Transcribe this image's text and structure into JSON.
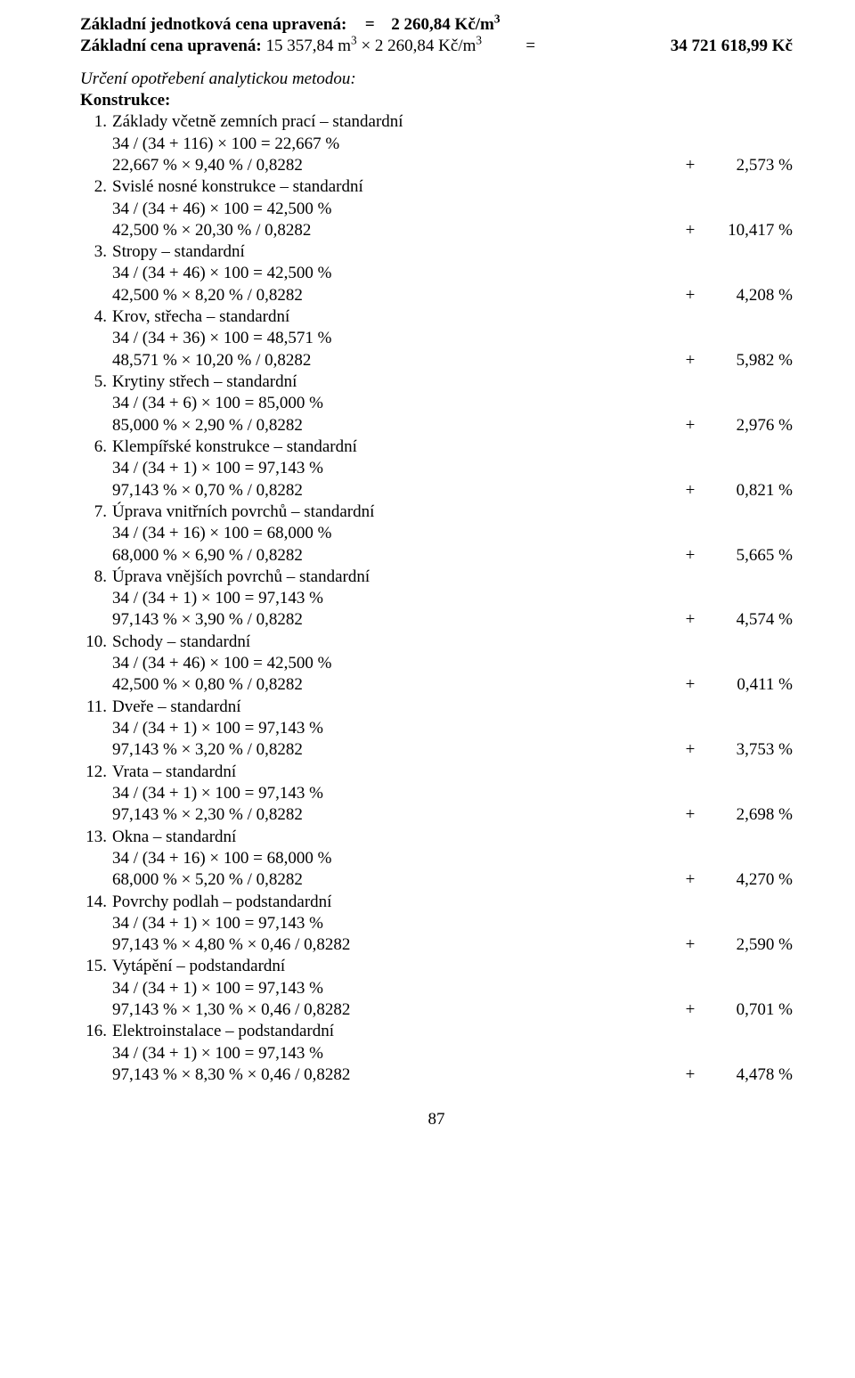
{
  "header": {
    "unit_price_label": "Základní jednotková cena upravená:",
    "unit_price_eq": "=",
    "unit_price_value": "2 260,84 Kč/m",
    "unit_price_exp": "3",
    "base_price_label_a": "Základní cena upravená: ",
    "base_price_label_b": "15 357,84 m",
    "base_price_exp1": "3",
    "base_price_label_c": " × 2 260,84 Kč/m",
    "base_price_exp2": "3",
    "base_price_eq": "=",
    "base_price_total": "34 721 618,99 Kč"
  },
  "section": {
    "method_title": "Určení opotřebení analytickou metodou:",
    "konstrukce_title": "Konstrukce:"
  },
  "items": [
    {
      "n": "1.",
      "title": "Základy včetně zemních prací – standardní",
      "calc": "34 / (34 + 116) × 100 = 22,667 %",
      "result_lhs": "22,667 % × 9,40 % / 0,8282",
      "plus": "+",
      "value": "2,573 %"
    },
    {
      "n": "2.",
      "title": "Svislé nosné konstrukce – standardní",
      "calc": "34 / (34 + 46) × 100 = 42,500 %",
      "result_lhs": "42,500 % × 20,30 % / 0,8282",
      "plus": "+",
      "value": "10,417 %"
    },
    {
      "n": "3.",
      "title": "Stropy – standardní",
      "calc": "34 / (34 + 46) × 100 = 42,500 %",
      "result_lhs": "42,500 % ×  8,20 % / 0,8282",
      "plus": "+",
      "value": "4,208 %"
    },
    {
      "n": "4.",
      "title": "Krov, střecha – standardní",
      "calc": "34 / (34 + 36) × 100 = 48,571 %",
      "result_lhs": "48,571 % × 10,20 % / 0,8282",
      "plus": "+",
      "value": "5,982 %"
    },
    {
      "n": "5.",
      "title": "Krytiny střech – standardní",
      "calc": "34 / (34 + 6) × 100 = 85,000 %",
      "result_lhs": "85,000 % × 2,90 % / 0,8282",
      "plus": "+",
      "value": "2,976 %"
    },
    {
      "n": "6.",
      "title": "Klempířské konstrukce – standardní",
      "calc": "34 / (34 + 1) × 100 = 97,143 %",
      "result_lhs": "97,143 % × 0,70 % / 0,8282",
      "plus": "+",
      "value": "0,821 %"
    },
    {
      "n": "7.",
      "title": "Úprava vnitřních povrchů – standardní",
      "calc": "34 / (34 + 16) × 100 = 68,000 %",
      "result_lhs": "68,000 % × 6,90 % / 0,8282",
      "plus": "+",
      "value": "5,665 %"
    },
    {
      "n": "8.",
      "title": "Úprava vnějších povrchů – standardní",
      "calc": "34 / (34 + 1) × 100 = 97,143 %",
      "result_lhs": "97,143 % × 3,90 % / 0,8282",
      "plus": "+",
      "value": "4,574 %"
    },
    {
      "n": "10.",
      "title": "Schody – standardní",
      "calc": "34 / (34 + 46) × 100 = 42,500 %",
      "result_lhs": "42,500 % ×  0,80 % / 0,8282",
      "plus": "+",
      "value": "0,411 %"
    },
    {
      "n": "11.",
      "title": "Dveře – standardní",
      "calc": "34 / (34 + 1) × 100 = 97,143 %",
      "result_lhs": "97,143 % × 3,20 % / 0,8282",
      "plus": "+",
      "value": "3,753 %"
    },
    {
      "n": "12.",
      "title": "Vrata – standardní",
      "calc": "34 / (34 + 1) × 100 = 97,143 %",
      "result_lhs": "97,143 % × 2,30 % / 0,8282",
      "plus": "+",
      "value": "2,698 %"
    },
    {
      "n": "13.",
      "title": "Okna – standardní",
      "calc": "34 / (34 + 16) × 100 = 68,000 %",
      "result_lhs": "68,000 % × 5,20 % / 0,8282",
      "plus": "+",
      "value": "4,270 %"
    },
    {
      "n": "14.",
      "title": "Povrchy podlah – podstandardní",
      "calc": "34 / (34 + 1) × 100 = 97,143 %",
      "result_lhs": "97,143 % × 4,80 % × 0,46 / 0,8282",
      "plus": "+",
      "value": "2,590 %"
    },
    {
      "n": "15.",
      "title": "Vytápění – podstandardní",
      "calc": "34 / (34 + 1) × 100 = 97,143 %",
      "result_lhs": "97,143 % × 1,30 % × 0,46 / 0,8282",
      "plus": "+",
      "value": "0,701 %"
    },
    {
      "n": "16.",
      "title": "Elektroinstalace – podstandardní",
      "calc": "34 / (34 + 1) × 100 = 97,143 %",
      "result_lhs": "97,143 % × 8,30 % × 0,46 / 0,8282",
      "plus": "+",
      "value": "4,478 %"
    }
  ],
  "footer": {
    "page_number": "87"
  }
}
